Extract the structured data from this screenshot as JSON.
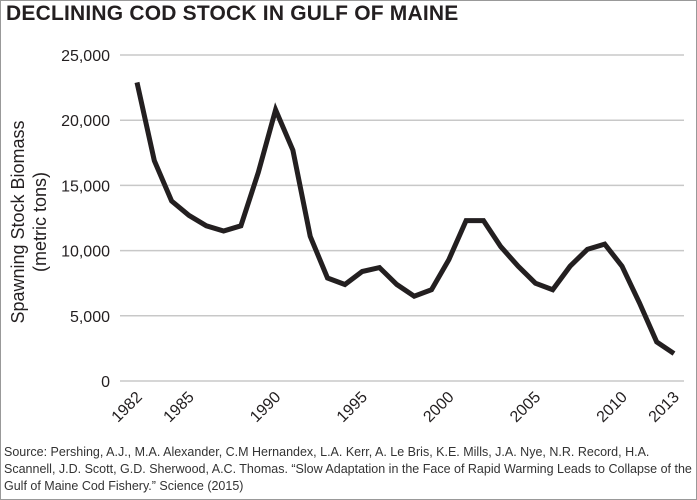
{
  "chart_data": {
    "type": "line",
    "title": "DECLINING COD STOCK IN GULF OF MAINE",
    "xlabel": "",
    "ylabel": [
      "Spawning Stock Biomass",
      "(metric tons)"
    ],
    "xlim": [
      1982,
      2013
    ],
    "ylim": [
      0,
      25000
    ],
    "x_ticks": [
      1982,
      1985,
      1990,
      1995,
      2000,
      2005,
      2010,
      2013
    ],
    "y_ticks": [
      0,
      5000,
      10000,
      15000,
      20000,
      25000
    ],
    "y_tick_labels": [
      "0",
      "5,000",
      "10,000",
      "15,000",
      "20,000",
      "25,000"
    ],
    "grid": "horizontal",
    "line_color": "#231f20",
    "grid_color": "#c8c8c8",
    "x": [
      1982,
      1983,
      1984,
      1985,
      1986,
      1987,
      1988,
      1989,
      1990,
      1991,
      1992,
      1993,
      1994,
      1995,
      1996,
      1997,
      1998,
      1999,
      2000,
      2001,
      2002,
      2003,
      2004,
      2005,
      2006,
      2007,
      2008,
      2009,
      2010,
      2011,
      2012,
      2013
    ],
    "values": [
      22900,
      16900,
      13800,
      12700,
      11900,
      11500,
      11900,
      16000,
      20800,
      17700,
      11100,
      7900,
      7400,
      8400,
      8700,
      7400,
      6500,
      7000,
      9300,
      12300,
      12300,
      10300,
      8800,
      7500,
      7000,
      8800,
      10100,
      10500,
      8800,
      6000,
      3000,
      2100
    ]
  },
  "source": "Source: Pershing, A.J., M.A. Alexander, C.M Hernandex, L.A. Kerr, A. Le Bris, K.E. Mills, J.A. Nye, N.R. Record, H.A. Scannell, J.D. Scott, G.D. Sherwood, A.C. Thomas. “Slow Adaptation in the Face of Rapid Warming Leads to Collapse of the Gulf of Maine Cod Fishery.” Science (2015)"
}
